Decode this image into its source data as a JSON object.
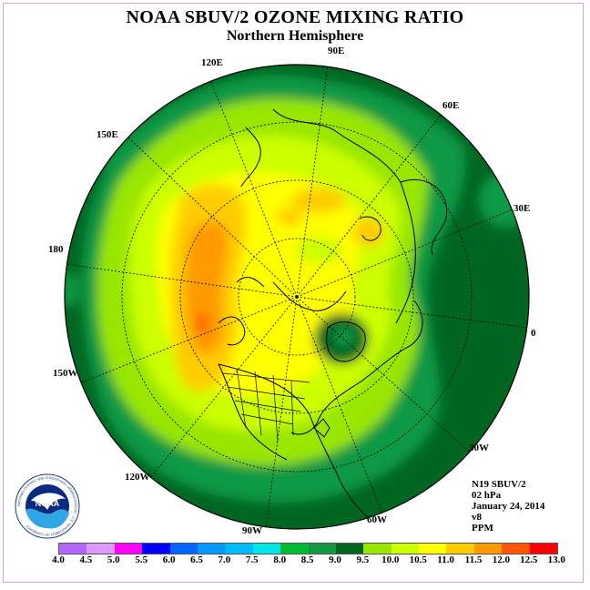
{
  "title": "NOAA SBUV/2 OZONE MIXING RATIO",
  "subtitle": "Northern Hemisphere",
  "longitude_labels": {
    "lon_90e": "90E",
    "lon_60e": "60E",
    "lon_30e": "30E",
    "lon_0": "0",
    "lon_30w": "30W",
    "lon_60w": "60W",
    "lon_90w": "90W",
    "lon_120w": "120W",
    "lon_150w": "150W",
    "lon_180": "180",
    "lon_150e": "150E",
    "lon_120e": "120E"
  },
  "info": {
    "satellite": "N19 SBUV/2",
    "level": "02 hPa",
    "date": "January 24, 2014",
    "version": "v8",
    "units": "PPM"
  },
  "colorbar": {
    "colors": [
      "#b266ff",
      "#dd99ff",
      "#ff00ff",
      "#0000ff",
      "#0066ff",
      "#0099ff",
      "#00bbff",
      "#00e6e6",
      "#00bb33",
      "#119944",
      "#006622",
      "#99e600",
      "#ccff00",
      "#ffff00",
      "#ffcc00",
      "#ff9900",
      "#ff5500",
      "#ff0000",
      "#8b4513"
    ],
    "ticks": [
      "4.0",
      "4.5",
      "5.0",
      "5.5",
      "6.0",
      "6.5",
      "7.0",
      "7.5",
      "8.0",
      "8.5",
      "9.0",
      "9.5",
      "10.0",
      "10.5",
      "11.0",
      "11.5",
      "12.0",
      "12.5",
      "13.0"
    ]
  },
  "logo_text": "NOAA",
  "logo_ring_text": "NATIONAL OCEANIC AND ATMOSPHERIC ADMINISTRATION · U.S. DEPARTMENT OF COMMERCE"
}
